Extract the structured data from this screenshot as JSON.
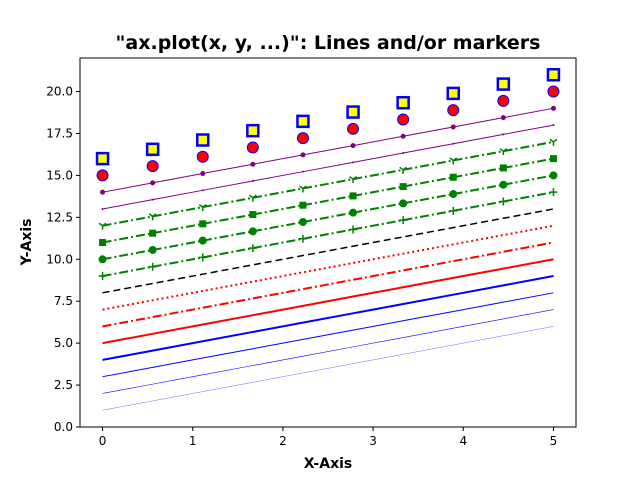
{
  "chart_data": {
    "type": "line",
    "title": "\"ax.plot(x, y, ...)\": Lines and/or markers",
    "xlabel": "X-Axis",
    "ylabel": "Y-Axis",
    "xlim": [
      -0.25,
      5.25
    ],
    "ylim": [
      0,
      22
    ],
    "x_ticks": [
      "0",
      "1",
      "2",
      "3",
      "4",
      "5"
    ],
    "y_ticks": [
      "0.0",
      "2.5",
      "5.0",
      "7.5",
      "10.0",
      "12.5",
      "15.0",
      "17.5",
      "20.0"
    ],
    "grid": false,
    "x": [
      0,
      0.5556,
      1.1111,
      1.6667,
      2.2222,
      2.7778,
      3.3333,
      3.8889,
      4.4444,
      5
    ],
    "slope": 1,
    "series": [
      {
        "offset": 1,
        "color": "#0000ff",
        "width": 0.3,
        "dash": "solid",
        "marker": "none"
      },
      {
        "offset": 2,
        "color": "#0000ff",
        "width": 0.6,
        "dash": "solid",
        "marker": "none"
      },
      {
        "offset": 3,
        "color": "#0000ff",
        "width": 1.0,
        "dash": "solid",
        "marker": "none"
      },
      {
        "offset": 4,
        "color": "#0000ff",
        "width": 2.0,
        "dash": "solid",
        "marker": "none"
      },
      {
        "offset": 5,
        "color": "#ff0000",
        "width": 2.0,
        "dash": "solid",
        "marker": "none"
      },
      {
        "offset": 6,
        "color": "#ff0000",
        "width": 2.0,
        "dash": "dashdot",
        "marker": "none"
      },
      {
        "offset": 7,
        "color": "#ff0000",
        "width": 2.0,
        "dash": "dotted",
        "marker": "none"
      },
      {
        "offset": 8,
        "color": "#000000",
        "width": 1.5,
        "dash": "dashed",
        "marker": "none"
      },
      {
        "offset": 9,
        "color": "#008000",
        "width": 2.0,
        "dash": "dashdot",
        "marker": "plus"
      },
      {
        "offset": 10,
        "color": "#008000",
        "width": 2.0,
        "dash": "dashdot",
        "marker": "circle"
      },
      {
        "offset": 11,
        "color": "#008000",
        "width": 2.0,
        "dash": "dashdot",
        "marker": "square"
      },
      {
        "offset": 12,
        "color": "#008000",
        "width": 2.0,
        "dash": "dashdot",
        "marker": "tri_down"
      },
      {
        "offset": 13,
        "color": "#800080",
        "width": 1.0,
        "dash": "solid",
        "marker": "pixel"
      },
      {
        "offset": 14,
        "color": "#800080",
        "width": 1.0,
        "dash": "solid",
        "marker": "point"
      },
      {
        "offset": 15,
        "color": "#ff0000",
        "width": 1.0,
        "dash": "none",
        "marker": "big_circle",
        "edge": "#0000ff"
      },
      {
        "offset": 16,
        "color": "#ffff00",
        "width": 1.0,
        "dash": "none",
        "marker": "big_square",
        "edge": "#0000ff"
      },
      {
        "offset": 14,
        "color": "#800080",
        "width": 1.0,
        "dash": "solid",
        "marker": "small_circle",
        "hidden": true
      }
    ]
  }
}
